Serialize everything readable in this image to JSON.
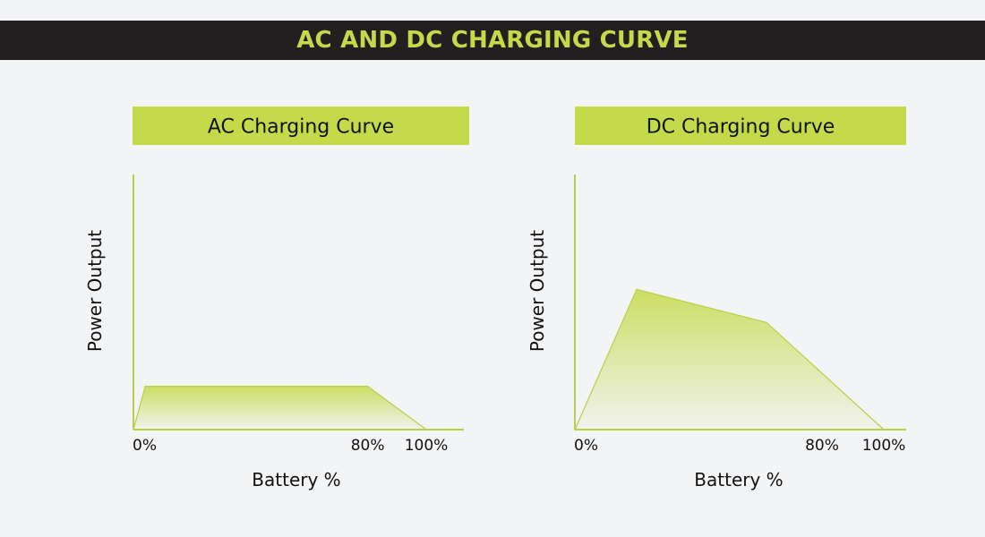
{
  "page": {
    "title": "AC AND DC CHARGING CURVE"
  },
  "colors": {
    "background": "#f3f4f6",
    "banner": "#231f20",
    "accent": "#c5da4a",
    "axis": "#b8cf47",
    "fill_top": "#c5da4a",
    "fill_bottom": "#f3f4f6"
  },
  "chart_data": [
    {
      "type": "area",
      "title": "AC Charging Curve",
      "xlabel": "Battery %",
      "ylabel": "Power Output",
      "xlim": [
        0,
        100
      ],
      "ylim": [
        0,
        100
      ],
      "x_ticks": [
        "0%",
        "80%",
        "100%"
      ],
      "x_tick_values": [
        0,
        80,
        100
      ],
      "grid": false,
      "series": [
        {
          "x": [
            0,
            4,
            80,
            100
          ],
          "y": [
            0,
            17,
            17,
            0
          ]
        }
      ]
    },
    {
      "type": "area",
      "title": "DC Charging Curve",
      "xlabel": "Battery %",
      "ylabel": "Power Output",
      "xlim": [
        0,
        100
      ],
      "ylim": [
        0,
        100
      ],
      "x_ticks": [
        "0%",
        "80%",
        "100%"
      ],
      "x_tick_values": [
        0,
        80,
        100
      ],
      "grid": false,
      "series": [
        {
          "x": [
            0,
            20,
            62,
            100
          ],
          "y": [
            0,
            55,
            42,
            0
          ]
        }
      ]
    }
  ]
}
